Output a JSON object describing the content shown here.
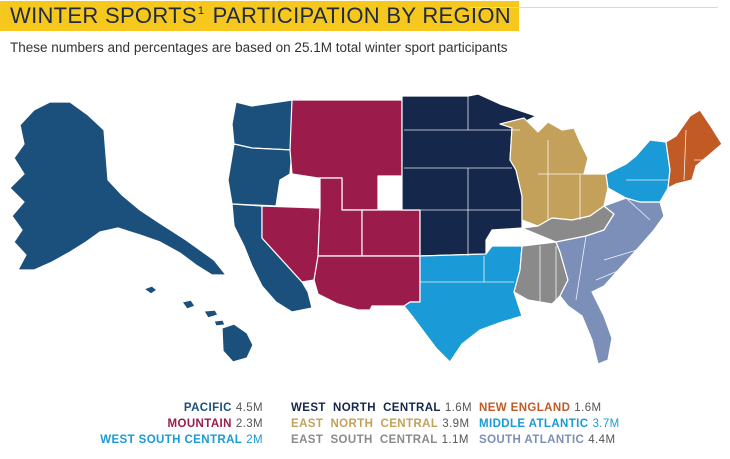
{
  "title": {
    "text_before": "WINTER SPORTS",
    "superscript": "1",
    "text_after": " PARTICIPATION BY REGION"
  },
  "subtitle": "These numbers and percentages are based on 25.1M total winter sport participants",
  "colors": {
    "pacific": "#1b4f7c",
    "mountain": "#9b1b4a",
    "west_north_central": "#15274a",
    "east_north_central": "#c4a15a",
    "new_england": "#c25a26",
    "middle_atlantic": "#1a9ad6",
    "south_atlantic": "#7b8fb8",
    "east_south_central": "#8a8a8a",
    "west_south_central": "#1a9ad6",
    "title_highlight": "#f6c71c"
  },
  "legend": {
    "col1": [
      {
        "name": "PACIFIC",
        "value": "4.5M"
      },
      {
        "name": "MOUNTAIN",
        "value": "2.3M"
      },
      {
        "name": "WEST SOUTH CENTRAL",
        "value": "2M"
      }
    ],
    "col2": [
      {
        "name": "WEST  NORTH  CENTRAL",
        "value": "1.6M"
      },
      {
        "name": "EAST  NORTH  CENTRAL",
        "value": "3.9M"
      },
      {
        "name": "EAST  SOUTH  CENTRAL",
        "value": "1.1M"
      }
    ],
    "col3": [
      {
        "name": "NEW ENGLAND",
        "value": "1.6M"
      },
      {
        "name": "MIDDLE ATLANTIC",
        "value": "3.7M"
      },
      {
        "name": "SOUTH ATLANTIC",
        "value": "4.4M"
      }
    ]
  }
}
